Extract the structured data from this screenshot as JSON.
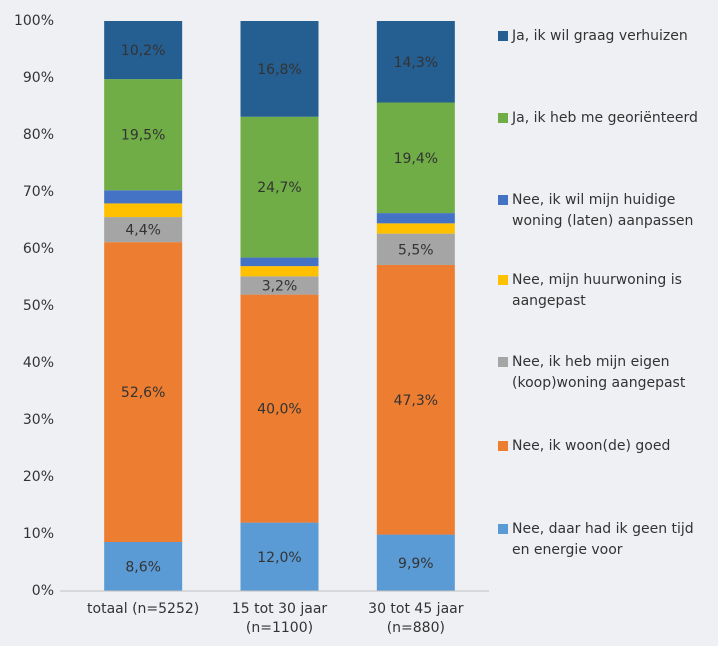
{
  "chart_data": {
    "type": "stacked_bar",
    "categories": [
      "totaal (n=5252)",
      "15 tot 30 jaar (n=1100)",
      "30 tot 45 jaar (n=880)"
    ],
    "series": [
      {
        "name": "Nee, daar had ik geen tijd en energie voor",
        "color": "#5b9bd5",
        "values": [
          8.6,
          12.0,
          9.9
        ],
        "value_labels": [
          "8,6%",
          "12,0%",
          "9,9%"
        ]
      },
      {
        "name": "Nee, ik woon(de) goed",
        "color": "#ed7d31",
        "values": [
          52.6,
          40.0,
          47.3
        ],
        "value_labels": [
          "52,6%",
          "40,0%",
          "47,3%"
        ]
      },
      {
        "name": "Nee, ik heb mijn eigen (koop)woning aangepast",
        "color": "#a5a5a5",
        "values": [
          4.4,
          3.2,
          5.5
        ],
        "value_labels": [
          "4,4%",
          "3,2%",
          "5,5%"
        ]
      },
      {
        "name": "Nee, mijn huurwoning is aangepast",
        "color": "#ffc000",
        "values": [
          2.4,
          1.8,
          1.8
        ],
        "value_labels": [
          null,
          null,
          null
        ]
      },
      {
        "name": "Nee, ik wil mijn huidige woning (laten) aanpassen",
        "color": "#4472c4",
        "values": [
          2.3,
          1.5,
          1.8
        ],
        "value_labels": [
          null,
          null,
          null
        ]
      },
      {
        "name": "Ja, ik heb me georiënteerd",
        "color": "#70ad47",
        "values": [
          19.5,
          24.7,
          19.4
        ],
        "value_labels": [
          "19,5%",
          "24,7%",
          "19,4%"
        ]
      },
      {
        "name": "Ja, ik wil graag verhuizen",
        "color": "#255e91",
        "values": [
          10.2,
          16.8,
          14.3
        ],
        "value_labels": [
          "10,2%",
          "16,8%",
          "14,3%"
        ]
      }
    ],
    "ylim": [
      0,
      100
    ],
    "yticks": [
      {
        "value": 0,
        "label": "0%"
      },
      {
        "value": 10,
        "label": "10%"
      },
      {
        "value": 20,
        "label": "20%"
      },
      {
        "value": 30,
        "label": "30%"
      },
      {
        "value": 40,
        "label": "40%"
      },
      {
        "value": 50,
        "label": "50%"
      },
      {
        "value": 60,
        "label": "60%"
      },
      {
        "value": 70,
        "label": "70%"
      },
      {
        "value": 80,
        "label": "80%"
      },
      {
        "value": 90,
        "label": "90%"
      },
      {
        "value": 100,
        "label": "100%"
      }
    ],
    "legend": "right",
    "grid": false
  }
}
